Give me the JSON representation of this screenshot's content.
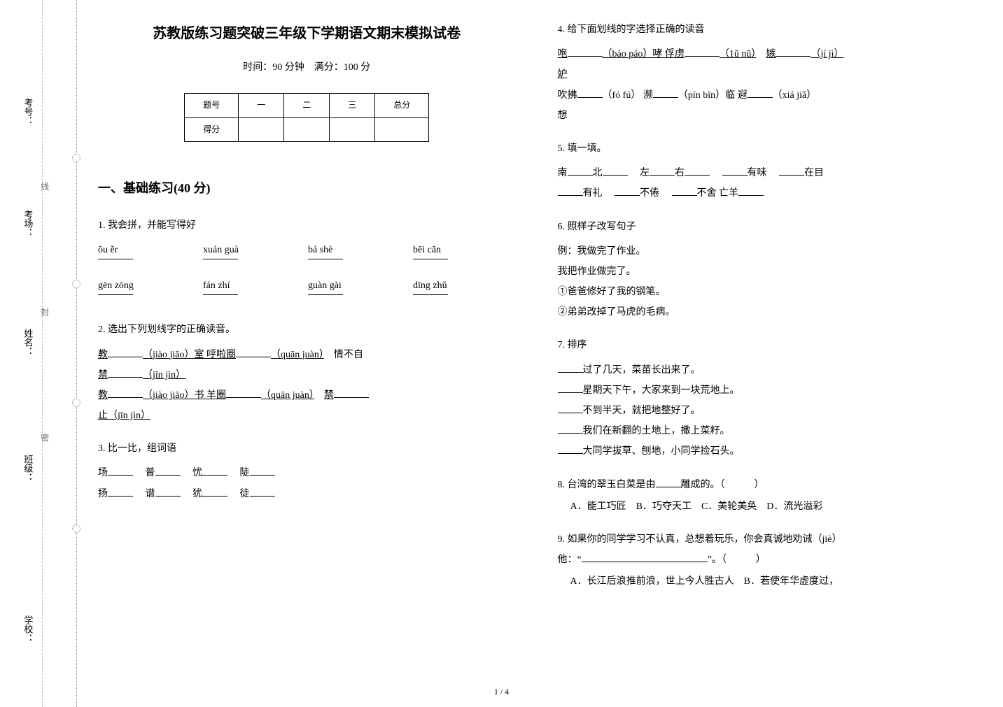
{
  "binding": {
    "labels": [
      "考号：",
      "考场：",
      "姓名：",
      "班级：",
      "学校："
    ],
    "dotted": [
      "线",
      "封",
      "密"
    ]
  },
  "header": {
    "title": "苏教版练习题突破三年级下学期语文期末模拟试卷",
    "subtitle": "时间：90 分钟　满分：100 分"
  },
  "score_table": {
    "headers": [
      "题号",
      "一",
      "二",
      "三",
      "总分"
    ],
    "row_label": "得分"
  },
  "section1": {
    "heading": "一、基础练习(40 分)"
  },
  "q1": {
    "title": "1.  我会拼，并能写得好",
    "row1": [
      "ǒu ěr",
      "xuán guà",
      "bá shè",
      "bēi cǎn"
    ],
    "row2": [
      "gēn zōng",
      "fán zhí",
      "guàn gài",
      "dīng zhǔ"
    ]
  },
  "q2": {
    "title": "2.  选出下列划线字的正确读音。",
    "l1a": "教",
    "l1b": "（jiào jiāo）室  呼啦圈",
    "l1c": "（quān juàn）",
    "l1d": "情不自",
    "l2a": "禁",
    "l2b": "（jīn jìn）",
    "l3a": "教",
    "l3b": "（jiào jiāo）书  羊圈",
    "l3c": "（quān juàn）",
    "l3d": "禁",
    "l4a": "止（jīn jìn）"
  },
  "q3": {
    "title": "3.  比一比，组词语",
    "line1": [
      "场",
      "普",
      "忧",
      "陡"
    ],
    "line2": [
      "扬",
      "谱",
      "犹",
      "徒"
    ]
  },
  "q4": {
    "title": "4.  给下面划线的字选择正确的读音",
    "w1": "咆",
    "p1": "（báo páo）哮  俘虏",
    "p1b": "（1ǔ nǔ）",
    "w1b": "嫉",
    "p1c": "（jí jì）",
    "w2": "妒",
    "l2a": "吹拂",
    "p2": "（fó fú）  濒",
    "p2b": "（pín bīn）临  遐",
    "p2c": "（xiá jiǎ）",
    "l2b": "想"
  },
  "q5": {
    "title": "5.  填一填。",
    "parts1": [
      "南",
      "北",
      "左",
      "右",
      "有味",
      "在目"
    ],
    "parts2": [
      "有礼",
      "不倦",
      "不舍  亡羊"
    ]
  },
  "q6": {
    "title": "6.  照样子改写句子",
    "ex1": "例：我做完了作业。",
    "ex2": "我把作业做完了。",
    "s1": "①爸爸修好了我的钢笔。",
    "s2": "②弟弟改掉了马虎的毛病。"
  },
  "q7": {
    "title": "7.  排序",
    "lines": [
      "过了几天，菜苗长出来了。",
      "星期天下午，大家来到一块荒地上。",
      "不到半天，就把地整好了。",
      "我们在新翻的土地上，撒上菜籽。",
      "大同学拔草、刨地，小同学捡石头。"
    ]
  },
  "q8": {
    "title_a": "8.  台湾的翠玉白菜是由",
    "title_b": "雕成的。（　　　）",
    "opts": "A．能工巧匠　B．巧夺天工　C．美轮美奂　D．流光溢彩"
  },
  "q9": {
    "title_a": "9.  如果你的同学学习不认真，总想着玩乐，你会真诚地劝诫（jiè）",
    "title_b": "他：“",
    "title_c": "”。（　　　）",
    "opts": "A．长江后浪推前浪，世上今人胜古人　B．若使年华虚度过，"
  },
  "pagenum": "1 / 4"
}
